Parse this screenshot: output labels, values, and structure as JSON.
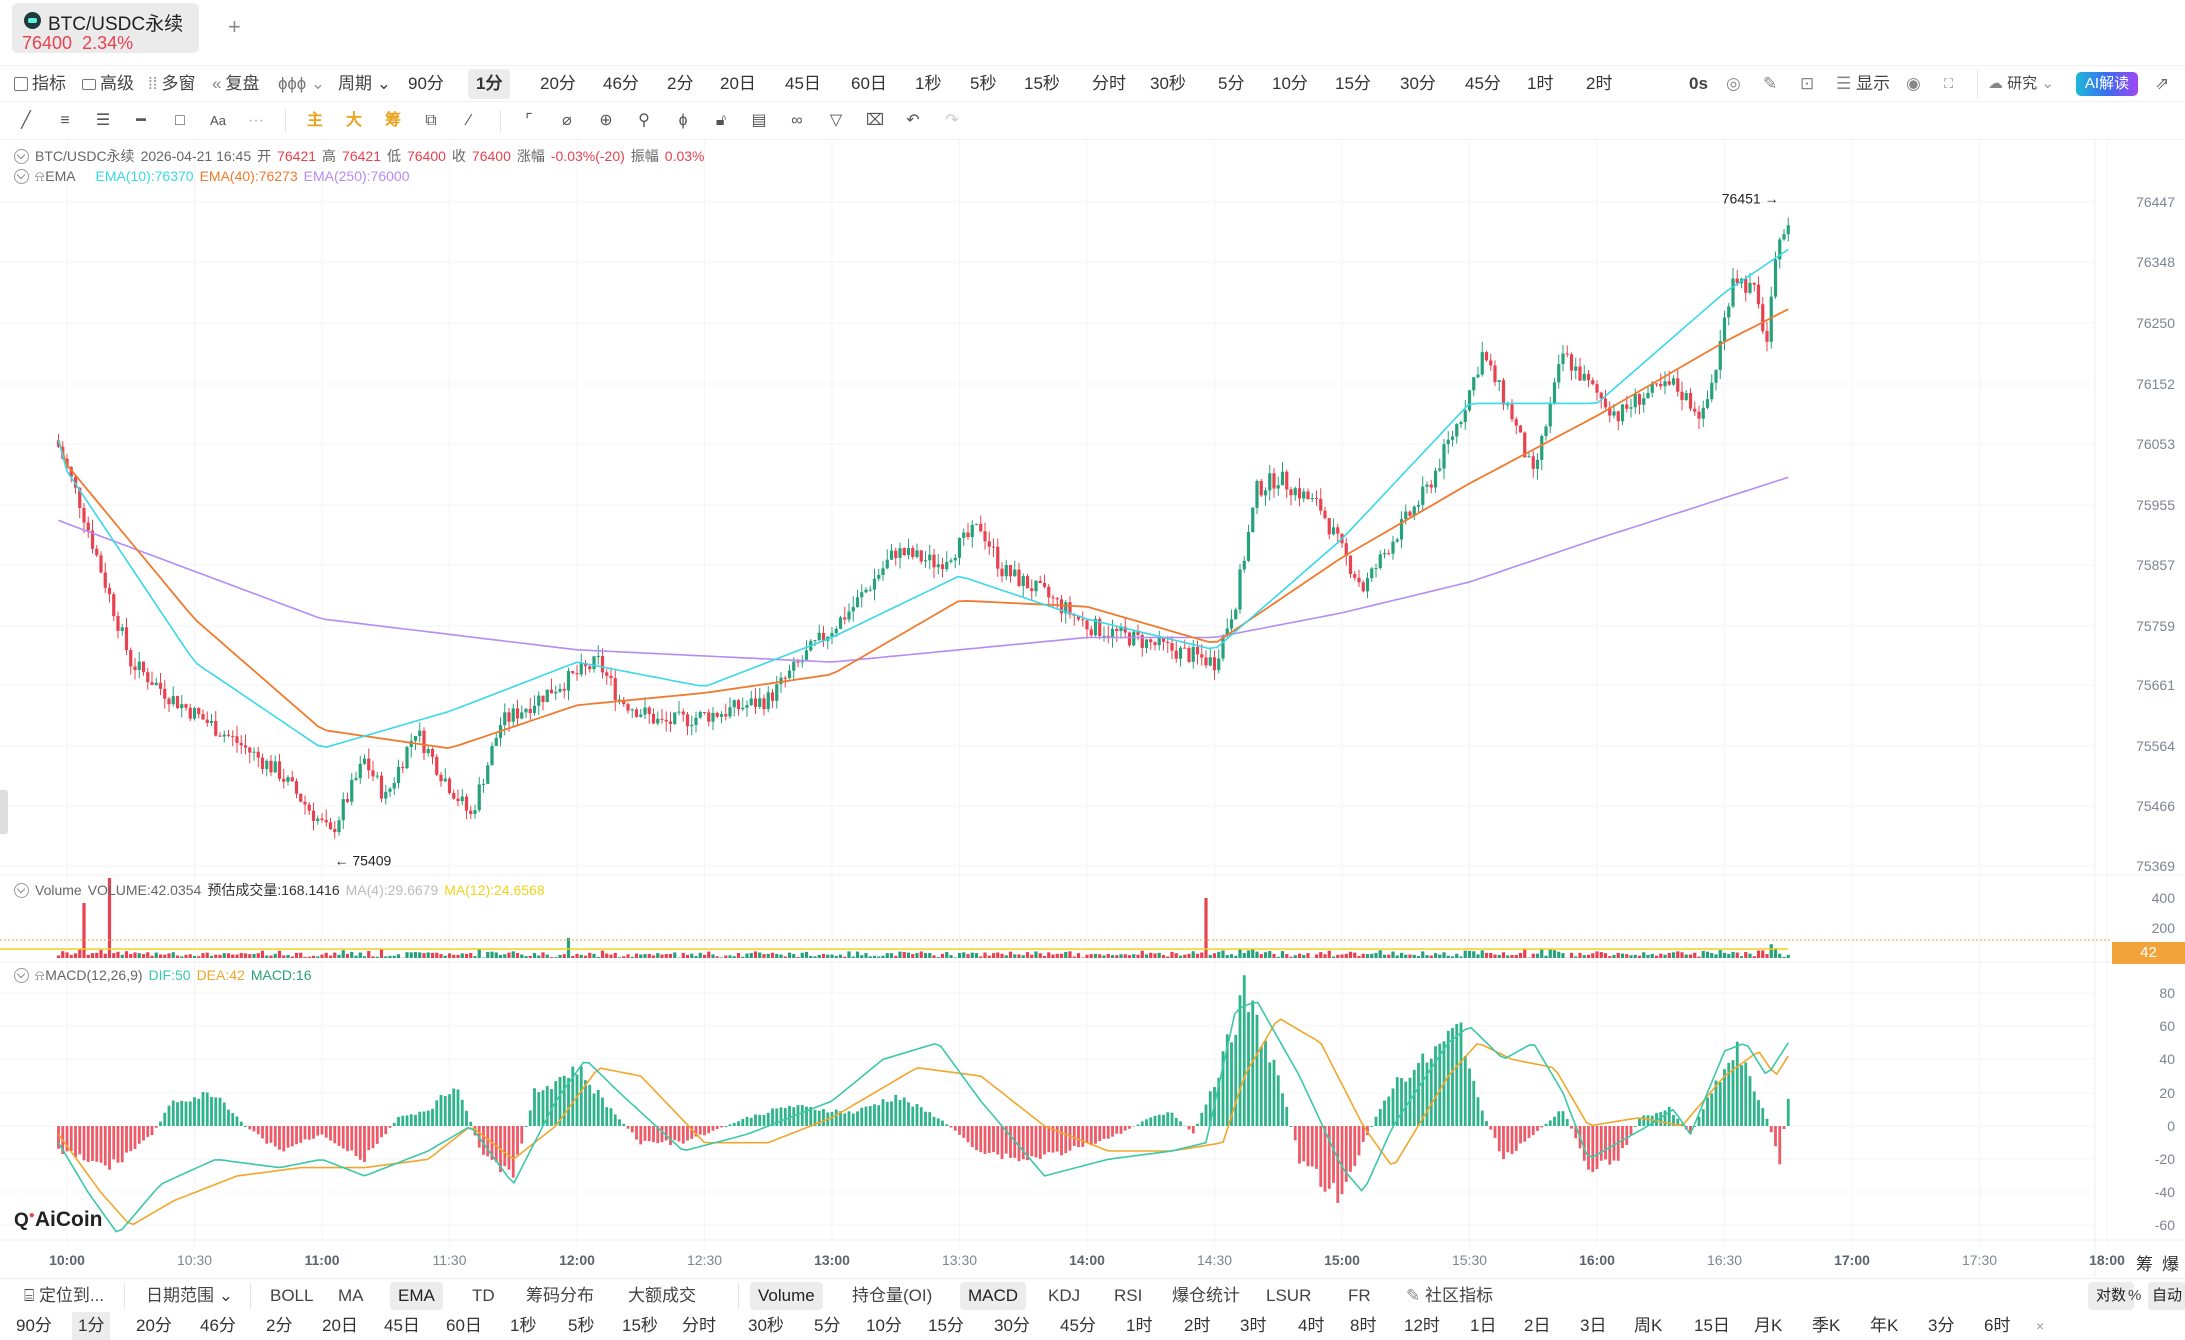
{
  "tab": {
    "symbol": "BTC/USDC永续",
    "price": "76400",
    "change": "2.34%",
    "add_label": "+"
  },
  "toolbar": {
    "left_items": [
      {
        "icon": "indicator-icon",
        "label": "指标"
      },
      {
        "icon": "advanced-icon",
        "label": "高级"
      },
      {
        "icon": "multi-window-icon",
        "label": "多窗"
      },
      {
        "icon": "replay-icon",
        "label": "复盘"
      },
      {
        "icon": "chart-type-icon",
        "label": "⌄"
      }
    ],
    "period_dropdown": "周期 ⌄",
    "periods": [
      "90分",
      "1分",
      "20分",
      "46分",
      "2分",
      "20日",
      "45日",
      "60日",
      "1秒",
      "5秒",
      "15秒",
      "分时",
      "30秒",
      "5分",
      "10分",
      "15分",
      "30分",
      "45分",
      "1时",
      "2时"
    ],
    "active_period": "1分",
    "countdown": "0s",
    "display_label": "显示",
    "research_label": "研究",
    "ai_label": "AI解读"
  },
  "legend": {
    "symbol": "BTC/USDC永续",
    "datetime": "2026-04-21 16:45",
    "open_label": "开",
    "open": "76421",
    "high_label": "高",
    "high": "76421",
    "low_label": "低",
    "low": "76400",
    "close_label": "收",
    "close": "76400",
    "change_label": "涨幅",
    "change": "-0.03%(-20)",
    "amplitude_label": "振幅",
    "amplitude": "0.03%",
    "ema_name": "EMA",
    "ema10": "EMA(10):76370",
    "ema40": "EMA(40):76273",
    "ema250": "EMA(250):76000"
  },
  "volume_legend": {
    "name": "Volume",
    "volume": "VOLUME:42.0354",
    "estimate": "预估成交量:168.1416",
    "ma4": "MA(4):29.6679",
    "ma12": "MA(12):24.6568"
  },
  "macd_legend": {
    "name": "MACD(12,26,9)",
    "dif": "DIF:50",
    "dea": "DEA:42",
    "macd": "MACD:16"
  },
  "markers": {
    "high": "76451 →",
    "low": "← 75409"
  },
  "price_axis": [
    "76447",
    "76348",
    "76250",
    "76152",
    "76053",
    "75955",
    "75857",
    "75759",
    "75661",
    "75564",
    "75466",
    "75369"
  ],
  "volume_axis": [
    "400",
    "200"
  ],
  "volume_badge": "42",
  "macd_axis": [
    "80",
    "60",
    "40",
    "20",
    "0",
    "-20",
    "-40",
    "-60"
  ],
  "time_axis": [
    {
      "t": "10:00",
      "bold": true
    },
    {
      "t": "10:30",
      "bold": false
    },
    {
      "t": "11:00",
      "bold": true
    },
    {
      "t": "11:30",
      "bold": false
    },
    {
      "t": "12:00",
      "bold": true
    },
    {
      "t": "12:30",
      "bold": false
    },
    {
      "t": "13:00",
      "bold": true
    },
    {
      "t": "13:30",
      "bold": false
    },
    {
      "t": "14:00",
      "bold": true
    },
    {
      "t": "14:30",
      "bold": false
    },
    {
      "t": "15:00",
      "bold": true
    },
    {
      "t": "15:30",
      "bold": false
    },
    {
      "t": "16:00",
      "bold": true
    },
    {
      "t": "16:30",
      "bold": false
    },
    {
      "t": "17:00",
      "bold": true
    },
    {
      "t": "17:30",
      "bold": false
    },
    {
      "t": "18:00",
      "bold": true
    }
  ],
  "axis_corner": [
    "筹",
    "爆"
  ],
  "logo": "AiCoin",
  "indicator_bar": {
    "locate": "定位到...",
    "date_range": "日期范围 ⌄",
    "main": [
      "BOLL",
      "MA",
      "EMA",
      "TD",
      "筹码分布",
      "大额成交"
    ],
    "main_active": "EMA",
    "sub": [
      "Volume",
      "持仓量(OI)",
      "MACD",
      "KDJ",
      "RSI",
      "爆仓统计",
      "LSUR",
      "FR",
      "社区指标"
    ],
    "sub_active": [
      "Volume",
      "MACD"
    ],
    "scale": [
      "对数",
      "%",
      "自动"
    ]
  },
  "period_bar": {
    "items": [
      "90分",
      "1分",
      "20分",
      "46分",
      "2分",
      "20日",
      "45日",
      "60日",
      "1秒",
      "5秒",
      "15秒",
      "分时",
      "30秒",
      "5分",
      "10分",
      "15分",
      "30分",
      "45分",
      "1时",
      "2时",
      "3时",
      "4时",
      "8时",
      "12时",
      "1日",
      "2日",
      "3日",
      "周K",
      "15日",
      "月K",
      "季K",
      "年K",
      "3分",
      "6时",
      "×"
    ],
    "active": "1分"
  },
  "colors": {
    "up": "#26a17b",
    "down": "#e8414f",
    "ema10": "#38d9e8",
    "ema40": "#f07a2e",
    "ema250": "#b38cf5",
    "dif": "#3cc8a8",
    "dea": "#f2a62b",
    "accent": "#f2a43a"
  },
  "chart_data": {
    "type": "candlestick",
    "title": "BTC/USDC永续 1分",
    "x_range": [
      "09:58",
      "16:45"
    ],
    "y_range": [
      75369,
      76447
    ],
    "high": 76451,
    "low": 75409,
    "last": 76400,
    "ema_keypoints": {
      "ema10": [
        [
          "10:00",
          76010
        ],
        [
          "10:30",
          75700
        ],
        [
          "11:00",
          75560
        ],
        [
          "11:30",
          75620
        ],
        [
          "12:00",
          75700
        ],
        [
          "12:30",
          75660
        ],
        [
          "13:00",
          75740
        ],
        [
          "13:30",
          75840
        ],
        [
          "14:00",
          75770
        ],
        [
          "14:30",
          75720
        ],
        [
          "15:00",
          75900
        ],
        [
          "15:30",
          76120
        ],
        [
          "16:00",
          76120
        ],
        [
          "16:30",
          76300
        ],
        [
          "16:45",
          76370
        ]
      ],
      "ema40": [
        [
          "10:00",
          76020
        ],
        [
          "10:30",
          75770
        ],
        [
          "11:00",
          75590
        ],
        [
          "11:30",
          75560
        ],
        [
          "12:00",
          75630
        ],
        [
          "12:30",
          75650
        ],
        [
          "13:00",
          75680
        ],
        [
          "13:30",
          75800
        ],
        [
          "14:00",
          75790
        ],
        [
          "14:30",
          75730
        ],
        [
          "15:00",
          75870
        ],
        [
          "15:30",
          75990
        ],
        [
          "16:00",
          76100
        ],
        [
          "16:30",
          76220
        ],
        [
          "16:45",
          76273
        ]
      ],
      "ema250": [
        [
          "10:00",
          75930
        ],
        [
          "11:00",
          75770
        ],
        [
          "12:00",
          75720
        ],
        [
          "13:00",
          75700
        ],
        [
          "14:00",
          75740
        ],
        [
          "14:30",
          75740
        ],
        [
          "15:00",
          75780
        ],
        [
          "15:30",
          75830
        ],
        [
          "16:00",
          75900
        ],
        [
          "16:45",
          76000
        ]
      ]
    },
    "macd_range": [
      -60,
      80
    ]
  }
}
